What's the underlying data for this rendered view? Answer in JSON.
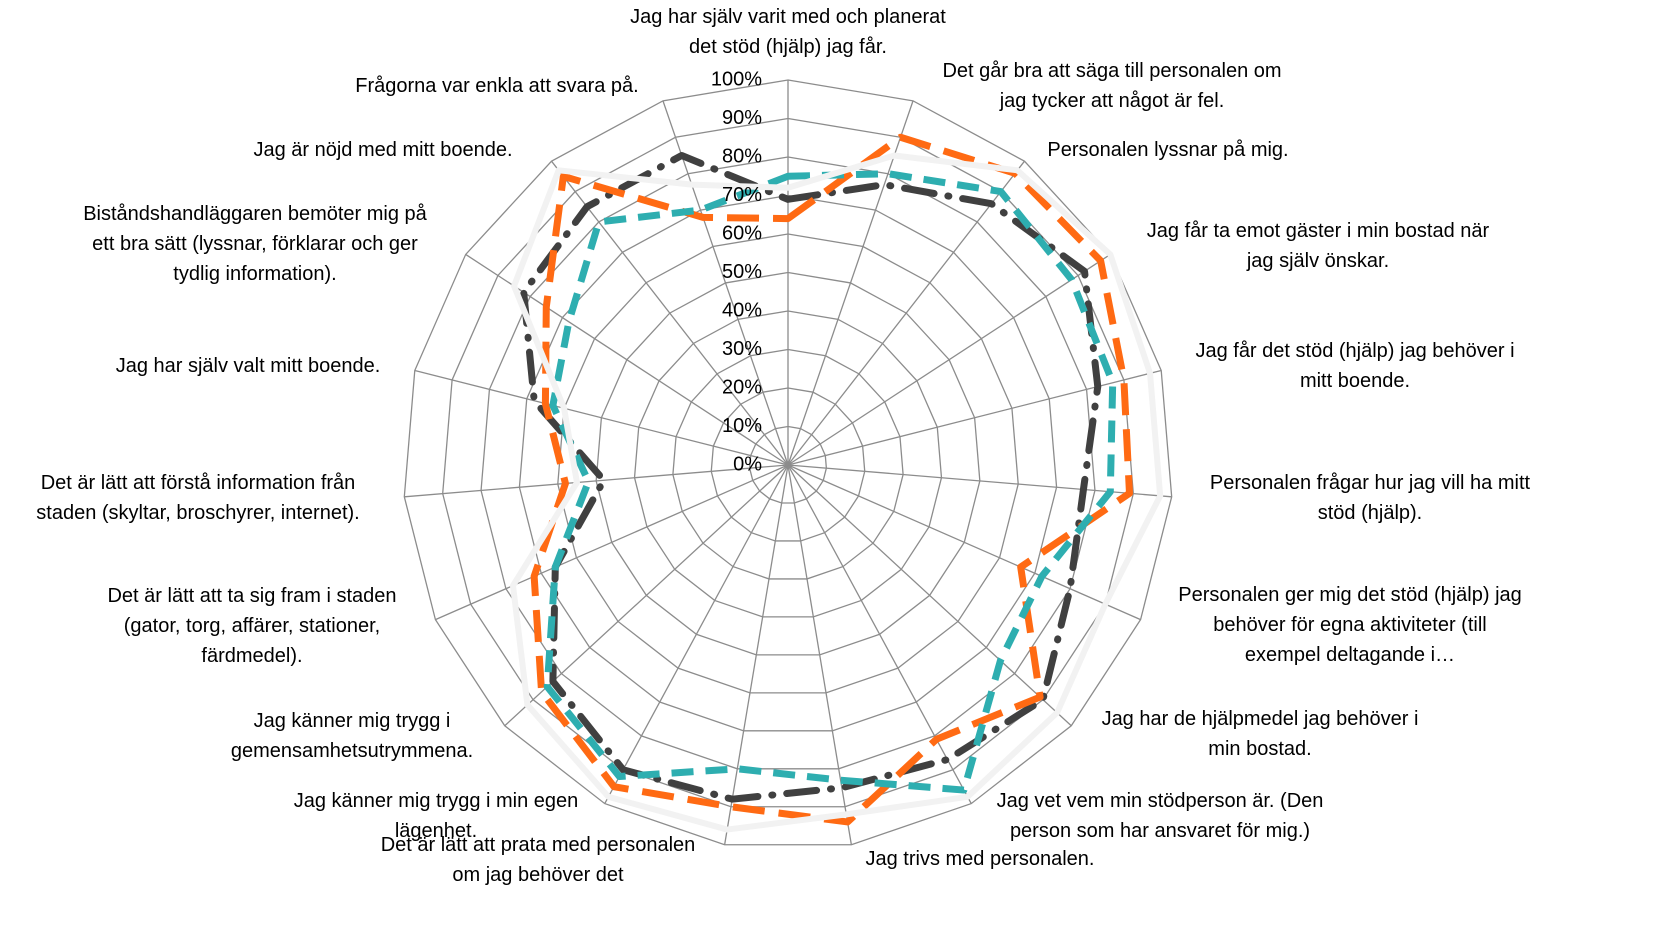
{
  "chart_data": {
    "type": "radar",
    "categories": [
      [
        "Jag har själv varit med och planerat",
        "det stöd (hjälp) jag får."
      ],
      [
        "Det går bra att säga till personalen om",
        "jag tycker att något är fel."
      ],
      [
        "Personalen lyssnar på mig."
      ],
      [
        "Jag får ta emot gäster i min bostad när",
        "jag själv önskar."
      ],
      [
        "Jag får det stöd (hjälp) jag behöver i",
        "mitt boende."
      ],
      [
        "Personalen frågar hur jag vill ha mitt",
        "stöd (hjälp)."
      ],
      [
        "Personalen ger mig det stöd (hjälp) jag",
        "behöver för egna aktiviteter (till",
        "exempel deltagande i…"
      ],
      [
        "Jag har de hjälpmedel jag behöver i",
        "min bostad."
      ],
      [
        "Jag vet vem min stödperson är. (Den",
        "person som har ansvaret för mig.)"
      ],
      [
        "Jag trivs med personalen."
      ],
      [
        "Det är lätt att prata med personalen",
        "om jag behöver det"
      ],
      [
        "Jag känner mig trygg i min egen",
        "lägenhet."
      ],
      [
        "Jag känner mig trygg i",
        "gemensamhetsutrymmena."
      ],
      [
        "Det är lätt att ta sig fram i staden",
        "(gator, torg, affärer, stationer,",
        "färdmedel)."
      ],
      [
        "Det är lätt att förstå information från",
        "staden (skyltar, broschyrer, internet)."
      ],
      [
        "Jag har själv valt mitt boende."
      ],
      [
        "Biståndshandläggaren bemöter mig på",
        "ett bra sätt (lyssnar, förklarar och ger",
        "tydlig information)."
      ],
      [
        "Jag är nöjd med mitt boende."
      ],
      [
        "Frågorna var enkla att svara på."
      ]
    ],
    "series": [
      {
        "color": "#404040",
        "dash": "long-dash-dot",
        "values": [
          69,
          77,
          86,
          92,
          83,
          77,
          80,
          90,
          87,
          85,
          88,
          90,
          83,
          66,
          48,
          68,
          82,
          85,
          85
        ]
      },
      {
        "color": "#ff6a13",
        "dash": "long-dash",
        "values": [
          64,
          90,
          96,
          97,
          90,
          89,
          66,
          89,
          81,
          94,
          90,
          95,
          87,
          72,
          58,
          65,
          75,
          95,
          68
        ]
      },
      {
        "color": "#2eaeb0",
        "dash": "dash",
        "values": [
          75,
          80,
          90,
          88,
          87,
          84,
          72,
          75,
          96,
          83,
          80,
          92,
          85,
          66,
          52,
          63,
          68,
          80,
          70
        ]
      },
      {
        "color": "#f2f2f2",
        "dash": "solid",
        "values": [
          72,
          85,
          97,
          100,
          97,
          97,
          90,
          95,
          98,
          92,
          96,
          98,
          92,
          78,
          55,
          60,
          85,
          97,
          77
        ]
      }
    ],
    "ylim": [
      0,
      100
    ],
    "yticks": [
      {
        "value": 0,
        "label": "0%"
      },
      {
        "value": 10,
        "label": "10%"
      },
      {
        "value": 20,
        "label": "20%"
      },
      {
        "value": 30,
        "label": "30%"
      },
      {
        "value": 40,
        "label": "40%"
      },
      {
        "value": 50,
        "label": "50%"
      },
      {
        "value": 60,
        "label": "60%"
      },
      {
        "value": 70,
        "label": "70%"
      },
      {
        "value": 80,
        "label": "80%"
      },
      {
        "value": 90,
        "label": "90%"
      },
      {
        "value": 100,
        "label": "100%"
      }
    ],
    "grid": true
  }
}
